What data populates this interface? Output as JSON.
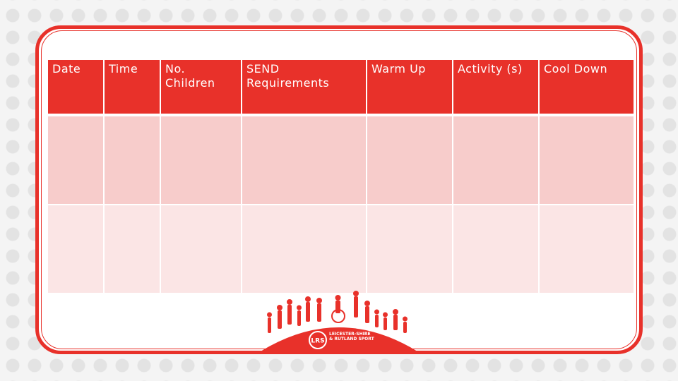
{
  "table": {
    "headers": [
      "Date",
      "Time",
      "No.\nChildren",
      "SEND\nRequirements",
      "Warm Up",
      "Activity (s)",
      "Cool Down"
    ],
    "rows": [
      [
        "",
        "",
        "",
        "",
        "",
        "",
        ""
      ],
      [
        "",
        "",
        "",
        "",
        "",
        "",
        ""
      ]
    ]
  },
  "footer": {
    "badge": "LRS",
    "org_name": "LEICESTER-SHIRE\n& RUTLAND SPORT"
  },
  "colors": {
    "brand_red": "#e8312a",
    "row_a": "#f7cccb",
    "row_b": "#fbe5e5"
  }
}
